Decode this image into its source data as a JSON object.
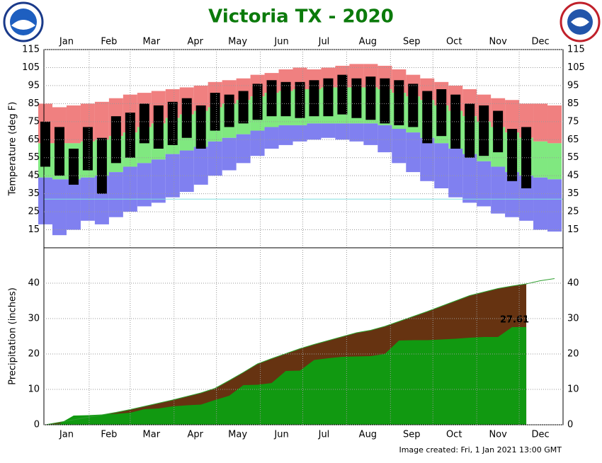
{
  "chart_data": [
    {
      "type": "range",
      "title": "Victoria TX - 2020",
      "ylabel": "Temperature (deg F)",
      "x": [
        1,
        11,
        21,
        31,
        41,
        51,
        61,
        71,
        81,
        91,
        101,
        111,
        121,
        131,
        141,
        151,
        161,
        171,
        181,
        191,
        201,
        211,
        221,
        231,
        241,
        251,
        261,
        271,
        281,
        291,
        301,
        311,
        321,
        331,
        341,
        351,
        361
      ],
      "series": [
        {
          "color": "#f08080",
          "values": [
            85,
            83,
            84,
            85,
            86,
            88,
            90,
            91,
            92,
            93,
            94,
            95,
            97,
            98,
            99,
            101,
            102,
            104,
            105,
            104,
            105,
            106,
            107,
            107,
            106,
            104,
            101,
            99,
            97,
            95,
            93,
            90,
            88,
            87,
            85,
            85,
            84
          ]
        },
        {
          "color": "#80e880",
          "values": [
            63,
            63,
            63,
            64,
            65,
            67,
            69,
            72,
            74,
            77,
            79,
            81,
            83,
            85,
            87,
            89,
            91,
            92,
            93,
            93,
            94,
            94,
            94,
            94,
            93,
            91,
            89,
            87,
            84,
            81,
            78,
            75,
            72,
            69,
            66,
            64,
            63
          ]
        },
        {
          "color": "#8080f0",
          "values": [
            44,
            43,
            43,
            44,
            45,
            47,
            50,
            52,
            54,
            57,
            59,
            61,
            64,
            66,
            68,
            70,
            72,
            73,
            73,
            74,
            74,
            74,
            74,
            74,
            73,
            71,
            69,
            66,
            63,
            60,
            57,
            53,
            50,
            47,
            45,
            44,
            43
          ]
        },
        {
          "color": "#8080f0",
          "values": [
            18,
            12,
            15,
            20,
            18,
            22,
            25,
            28,
            30,
            33,
            36,
            40,
            45,
            48,
            52,
            56,
            60,
            62,
            64,
            65,
            66,
            65,
            64,
            62,
            58,
            52,
            47,
            42,
            38,
            33,
            30,
            28,
            24,
            22,
            20,
            15,
            14
          ]
        },
        {
          "color": "#000000",
          "values": [
            75,
            72,
            60,
            72,
            66,
            78,
            80,
            85,
            84,
            86,
            88,
            84,
            91,
            90,
            92,
            96,
            98,
            97,
            97,
            98,
            99,
            101,
            99,
            100,
            99,
            98,
            96,
            92,
            93,
            90,
            85,
            84,
            81,
            71,
            72,
            null,
            null
          ]
        },
        {
          "color": "#000000",
          "values": [
            50,
            45,
            40,
            48,
            35,
            52,
            55,
            63,
            60,
            62,
            66,
            60,
            70,
            72,
            74,
            76,
            78,
            78,
            77,
            78,
            78,
            79,
            77,
            76,
            74,
            73,
            72,
            63,
            67,
            60,
            55,
            56,
            58,
            42,
            38,
            null,
            null
          ]
        }
      ],
      "hline": 32,
      "hline_color": "#80e0e0",
      "xlim": [
        0,
        367
      ],
      "ylim": [
        5,
        115
      ],
      "yticks": [
        15,
        25,
        35,
        45,
        55,
        65,
        75,
        85,
        95,
        105,
        115
      ],
      "xgrid": [
        32,
        61,
        92,
        122,
        153,
        183,
        214,
        245,
        275,
        306,
        336
      ],
      "xticks": [
        {
          "value": 16,
          "label": "Jan"
        },
        {
          "value": 46,
          "label": "Feb"
        },
        {
          "value": 76,
          "label": "Mar"
        },
        {
          "value": 107,
          "label": "Apr"
        },
        {
          "value": 137,
          "label": "May"
        },
        {
          "value": 168,
          "label": "Jun"
        },
        {
          "value": 198,
          "label": "Jul"
        },
        {
          "value": 229,
          "label": "Aug"
        },
        {
          "value": 260,
          "label": "Sep"
        },
        {
          "value": 290,
          "label": "Oct"
        },
        {
          "value": 321,
          "label": "Nov"
        },
        {
          "value": 351,
          "label": "Dec"
        }
      ]
    },
    {
      "type": "area",
      "ylabel": "Precipitation (inches)",
      "caption": "Image created: Fri, 1 Jan 2021 13:00 GMT",
      "x": [
        1,
        11,
        21,
        31,
        41,
        51,
        61,
        71,
        81,
        91,
        101,
        111,
        121,
        131,
        141,
        151,
        161,
        171,
        181,
        191,
        201,
        211,
        221,
        231,
        241,
        251,
        261,
        271,
        281,
        291,
        301,
        311,
        321,
        331,
        341,
        351,
        361
      ],
      "series": [
        {
          "color": "#663311",
          "line_color": "#2fa02f",
          "values": [
            0,
            0.7,
            1.4,
            2.1,
            2.8,
            3.5,
            4.3,
            5.2,
            6.1,
            7.0,
            8.0,
            9.0,
            10.3,
            12.5,
            14.8,
            17.2,
            18.7,
            20.1,
            21.5,
            22.7,
            23.8,
            24.9,
            26.0,
            26.7,
            27.8,
            29.2,
            30.6,
            32.0,
            33.5,
            35.0,
            36.5,
            37.5,
            38.5,
            39.2,
            39.8,
            40.7,
            41.3
          ]
        },
        {
          "color": "#119911",
          "values": [
            0,
            0.3,
            2.6,
            2.7,
            2.9,
            3.1,
            3.4,
            4.4,
            4.6,
            5.2,
            5.5,
            5.7,
            7.0,
            8.2,
            11.2,
            11.3,
            11.8,
            15.2,
            15.3,
            18.3,
            18.8,
            19.2,
            19.3,
            19.4,
            20.0,
            23.8,
            23.9,
            23.9,
            24.1,
            24.3,
            24.6,
            24.8,
            24.8,
            27.6,
            27.61,
            null,
            null
          ]
        }
      ],
      "xlim": [
        0,
        367
      ],
      "ylim": [
        0,
        50
      ],
      "yticks": [
        0,
        10,
        20,
        30,
        40
      ],
      "xgrid": [
        32,
        61,
        92,
        122,
        153,
        183,
        214,
        245,
        275,
        306,
        336
      ],
      "xticks": [
        {
          "value": 16,
          "label": "Jan"
        },
        {
          "value": 46,
          "label": "Feb"
        },
        {
          "value": 76,
          "label": "Mar"
        },
        {
          "value": 107,
          "label": "Apr"
        },
        {
          "value": 137,
          "label": "May"
        },
        {
          "value": 168,
          "label": "Jun"
        },
        {
          "value": 198,
          "label": "Jul"
        },
        {
          "value": 229,
          "label": "Aug"
        },
        {
          "value": 260,
          "label": "Sep"
        },
        {
          "value": 290,
          "label": "Oct"
        },
        {
          "value": 321,
          "label": "Nov"
        },
        {
          "value": 351,
          "label": "Dec"
        }
      ]
    }
  ]
}
